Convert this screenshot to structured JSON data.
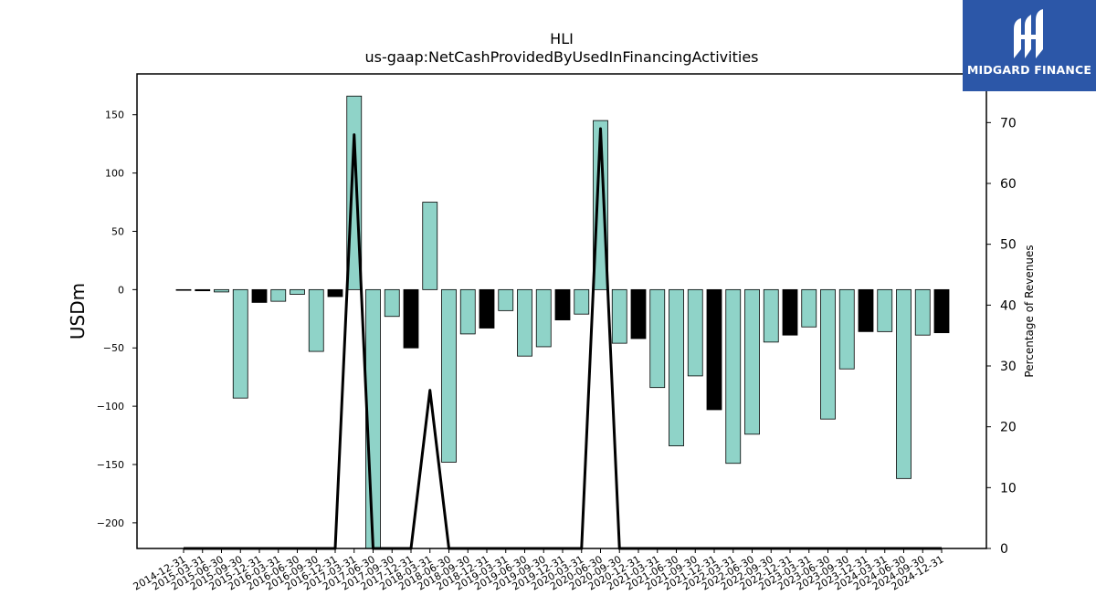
{
  "brand": {
    "name": "MIDGARD FINANCE",
    "logo_icon": "midgard-logo-icon",
    "bg_color": "#2c57a8"
  },
  "chart_data": {
    "type": "bar",
    "title": "HLI",
    "subtitle": "us-gaap:NetCashProvidedByUsedInFinancingActivities",
    "ylabel": "USDm",
    "y2label": "Percentage of Revenues",
    "ylim": [
      -222,
      185
    ],
    "y2lim": [
      0,
      78
    ],
    "yticks": [
      150,
      100,
      50,
      0,
      -50,
      -100,
      -150,
      -200
    ],
    "y2ticks": [
      0,
      10,
      20,
      30,
      40,
      50,
      60,
      70
    ],
    "bar_color_positive": "#8fd3c8",
    "bar_color_black": "#000000",
    "categories": [
      "2014-12-31",
      "2015-03-31",
      "2015-06-30",
      "2015-09-30",
      "2015-12-31",
      "2016-03-31",
      "2016-06-30",
      "2016-09-30",
      "2016-12-31",
      "2017-03-31",
      "2017-06-30",
      "2017-09-30",
      "2017-12-31",
      "2018-03-31",
      "2018-06-30",
      "2018-09-30",
      "2018-12-31",
      "2019-03-31",
      "2019-06-30",
      "2019-09-30",
      "2019-12-31",
      "2020-03-31",
      "2020-06-30",
      "2020-09-30",
      "2020-12-31",
      "2021-03-31",
      "2021-06-30",
      "2021-09-30",
      "2021-12-31",
      "2022-03-31",
      "2022-06-30",
      "2022-09-30",
      "2022-12-31",
      "2023-03-31",
      "2023-06-30",
      "2023-09-30",
      "2023-12-31",
      "2024-03-31",
      "2024-06-30",
      "2024-09-30",
      "2024-12-31"
    ],
    "series": [
      {
        "type": "bar",
        "values": [
          -0.5,
          -1,
          -2,
          -93,
          -11,
          -10,
          -4,
          -53,
          -6,
          166,
          -222,
          -23,
          -50,
          75,
          -148,
          -38,
          -33,
          -18,
          -57,
          -49,
          -26,
          -21,
          145,
          -46,
          -42,
          -84,
          -134,
          -74,
          -103,
          -149,
          -124,
          -45,
          -39,
          -32,
          -111,
          -68,
          -36,
          -36,
          -162,
          -39,
          -37
        ],
        "colors": [
          "teal",
          "black",
          "teal",
          "teal",
          "black",
          "teal",
          "teal",
          "teal",
          "black",
          "teal",
          "teal",
          "teal",
          "black",
          "teal",
          "teal",
          "teal",
          "black",
          "teal",
          "teal",
          "teal",
          "black",
          "teal",
          "teal",
          "teal",
          "black",
          "teal",
          "teal",
          "teal",
          "black",
          "teal",
          "teal",
          "teal",
          "black",
          "teal",
          "teal",
          "teal",
          "black",
          "teal",
          "teal",
          "teal",
          "black"
        ]
      },
      {
        "type": "line",
        "axis": "right",
        "values": [
          0,
          0,
          0,
          0,
          0,
          0,
          0,
          0,
          0,
          68,
          0,
          0,
          0,
          26,
          0,
          0,
          0,
          0,
          0,
          0,
          0,
          0,
          69,
          0,
          0,
          0,
          0,
          0,
          0,
          0,
          0,
          0,
          0,
          0,
          0,
          0,
          0,
          0,
          0,
          0,
          0
        ]
      }
    ]
  }
}
